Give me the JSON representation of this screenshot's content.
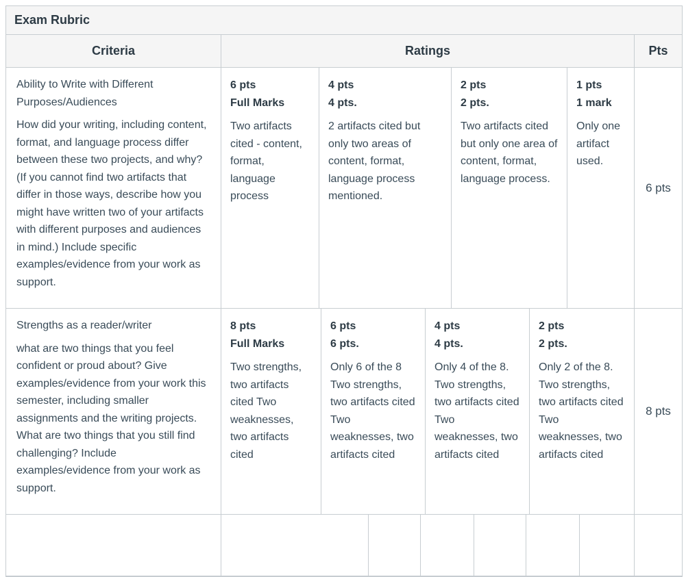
{
  "title": "Exam Rubric",
  "headers": {
    "criteria": "Criteria",
    "ratings": "Ratings",
    "pts": "Pts"
  },
  "rows": [
    {
      "criterion_title": "Ability to Write with Different Purposes/Audiences",
      "criterion_description": "How did your writing, including content, format, and language process differ between these two projects, and why? (If you cannot find two artifacts that differ in those ways, describe how you might have written two of your artifacts with different purposes and audiences in mind.) Include specific examples/evidence from your work as support.",
      "row_points": "6 pts",
      "ratings": [
        {
          "points": "6 pts",
          "label": "Full Marks",
          "description": "Two artifacts cited - content, format, language process"
        },
        {
          "points": "4 pts",
          "label": "4 pts.",
          "description": "2 artifacts cited but only two areas of content, format, language process mentioned."
        },
        {
          "points": "2 pts",
          "label": "2 pts.",
          "description": "Two artifacts cited but only one area of content, format, language process."
        },
        {
          "points": "1 pts",
          "label": "1 mark",
          "description": "Only one artifact used."
        }
      ]
    },
    {
      "criterion_title": "Strengths as a reader/writer",
      "criterion_description": "what are two things that you feel confident or proud about? Give examples/evidence from your work this semester, including smaller assignments and the writing projects. What are two things that you still find challenging? Include examples/evidence from your work as support.",
      "row_points": "8 pts",
      "ratings": [
        {
          "points": "8 pts",
          "label": "Full Marks",
          "description": "Two strengths, two artifacts cited Two weaknesses, two artifacts cited"
        },
        {
          "points": "6 pts",
          "label": "6 pts.",
          "description": "Only 6 of the 8 Two strengths, two artifacts cited Two weaknesses, two artifacts cited"
        },
        {
          "points": "4 pts",
          "label": "4 pts.",
          "description": "Only 4 of the 8. Two strengths, two artifacts cited Two weaknesses, two artifacts cited"
        },
        {
          "points": "2 pts",
          "label": "2 pts.",
          "description": "Only 2 of the 8. Two strengths, two artifacts cited Two weaknesses, two artifacts cited"
        }
      ]
    },
    {
      "criterion_title": "",
      "criterion_description": "",
      "row_points": "",
      "ratings": [
        {
          "points": "",
          "label": "",
          "description": ""
        },
        {
          "points": "",
          "label": "",
          "description": ""
        },
        {
          "points": "",
          "label": "",
          "description": ""
        },
        {
          "points": "",
          "label": "",
          "description": ""
        },
        {
          "points": "",
          "label": "",
          "description": ""
        },
        {
          "points": "",
          "label": "",
          "description": ""
        }
      ]
    }
  ],
  "colors": {
    "text_dark": "#2D3B45",
    "text_body": "#394B58",
    "border": "#C7CDD1",
    "header_bg": "#F5F5F5",
    "page_bg": "#FFFFFF"
  }
}
